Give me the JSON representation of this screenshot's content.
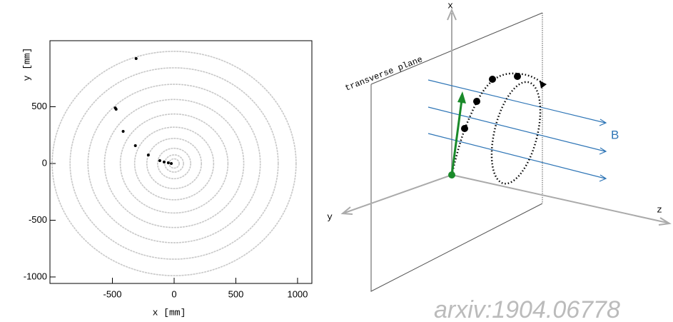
{
  "chart_data": {
    "type": "scatter",
    "x_label": "x [mm]",
    "y_label": "y [mm]",
    "x": [
      -308,
      -477,
      -470,
      -413,
      -314,
      -209,
      -116,
      -81,
      -47,
      -23
    ],
    "values": [
      925,
      490,
      478,
      283,
      157,
      75,
      25,
      13,
      6,
      0
    ],
    "color": "#000000",
    "rings": [
      988,
      843,
      698,
      564,
      436,
      320,
      221,
      134,
      76,
      41
    ],
    "ring_color": "#c8c8c8",
    "xlim": [
      -1006,
      1116
    ],
    "ylim": [
      -1057,
      1082
    ],
    "xticks": [
      -500,
      0,
      500,
      1000
    ],
    "yticks": [
      -1000,
      -500,
      0,
      500
    ]
  },
  "diagram": {
    "x_axis": "x",
    "y_axis": "y",
    "z_axis": "z",
    "plane": "transverse plane",
    "field": "B",
    "source": "arxiv:1904.06778"
  }
}
